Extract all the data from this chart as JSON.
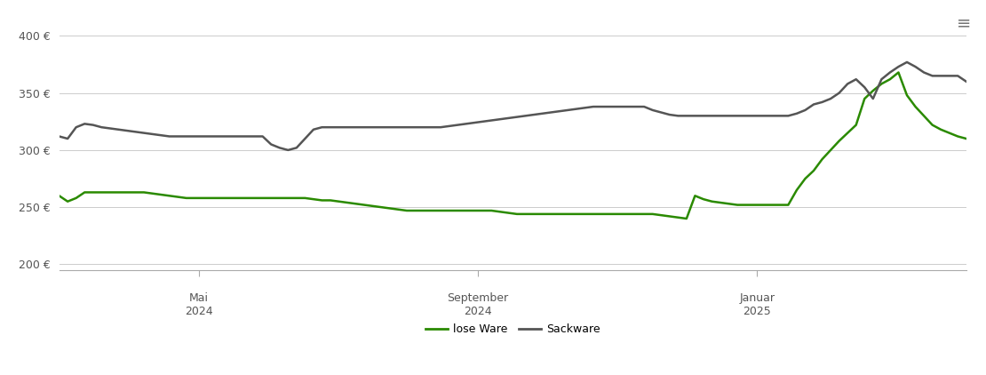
{
  "ylim": [
    195,
    415
  ],
  "yticks": [
    200,
    250,
    300,
    350,
    400
  ],
  "ytick_labels": [
    "200 €",
    "250 €",
    "300 €",
    "350 €",
    "400 €"
  ],
  "background_color": "#ffffff",
  "grid_color": "#cccccc",
  "lose_ware_color": "#2a8a00",
  "sackware_color": "#555555",
  "legend_labels": [
    "lose Ware",
    "Sackware"
  ],
  "lose_ware": [
    260,
    255,
    258,
    263,
    263,
    263,
    263,
    263,
    263,
    263,
    263,
    262,
    261,
    260,
    259,
    258,
    258,
    258,
    258,
    258,
    258,
    258,
    258,
    258,
    258,
    258,
    258,
    258,
    258,
    258,
    257,
    256,
    256,
    255,
    254,
    253,
    252,
    251,
    250,
    249,
    248,
    247,
    247,
    247,
    247,
    247,
    247,
    247,
    247,
    247,
    247,
    247,
    246,
    245,
    244,
    244,
    244,
    244,
    244,
    244,
    244,
    244,
    244,
    244,
    244,
    244,
    244,
    244,
    244,
    244,
    244,
    243,
    242,
    241,
    240,
    260,
    257,
    255,
    254,
    253,
    252,
    252,
    252,
    252,
    252,
    252,
    252,
    265,
    275,
    282,
    292,
    300,
    308,
    315,
    322,
    345,
    352,
    358,
    362,
    368,
    348,
    338,
    330,
    322,
    318,
    315,
    312,
    310
  ],
  "sackware": [
    312,
    310,
    320,
    323,
    322,
    320,
    319,
    318,
    317,
    316,
    315,
    314,
    313,
    312,
    312,
    312,
    312,
    312,
    312,
    312,
    312,
    312,
    312,
    312,
    312,
    305,
    302,
    300,
    302,
    310,
    318,
    320,
    320,
    320,
    320,
    320,
    320,
    320,
    320,
    320,
    320,
    320,
    320,
    320,
    320,
    320,
    321,
    322,
    323,
    324,
    325,
    326,
    327,
    328,
    329,
    330,
    331,
    332,
    333,
    334,
    335,
    336,
    337,
    338,
    338,
    338,
    338,
    338,
    338,
    338,
    335,
    333,
    331,
    330,
    330,
    330,
    330,
    330,
    330,
    330,
    330,
    330,
    330,
    330,
    330,
    330,
    330,
    332,
    335,
    340,
    342,
    345,
    350,
    358,
    362,
    355,
    345,
    362,
    368,
    373,
    377,
    373,
    368,
    365,
    365,
    365,
    365,
    360
  ],
  "x_tick_months": [
    2,
    6,
    10
  ],
  "x_tick_labels": [
    [
      "Mai",
      "2024"
    ],
    [
      "September",
      "2024"
    ],
    [
      "Januar",
      "2025"
    ]
  ],
  "total_months": 13
}
